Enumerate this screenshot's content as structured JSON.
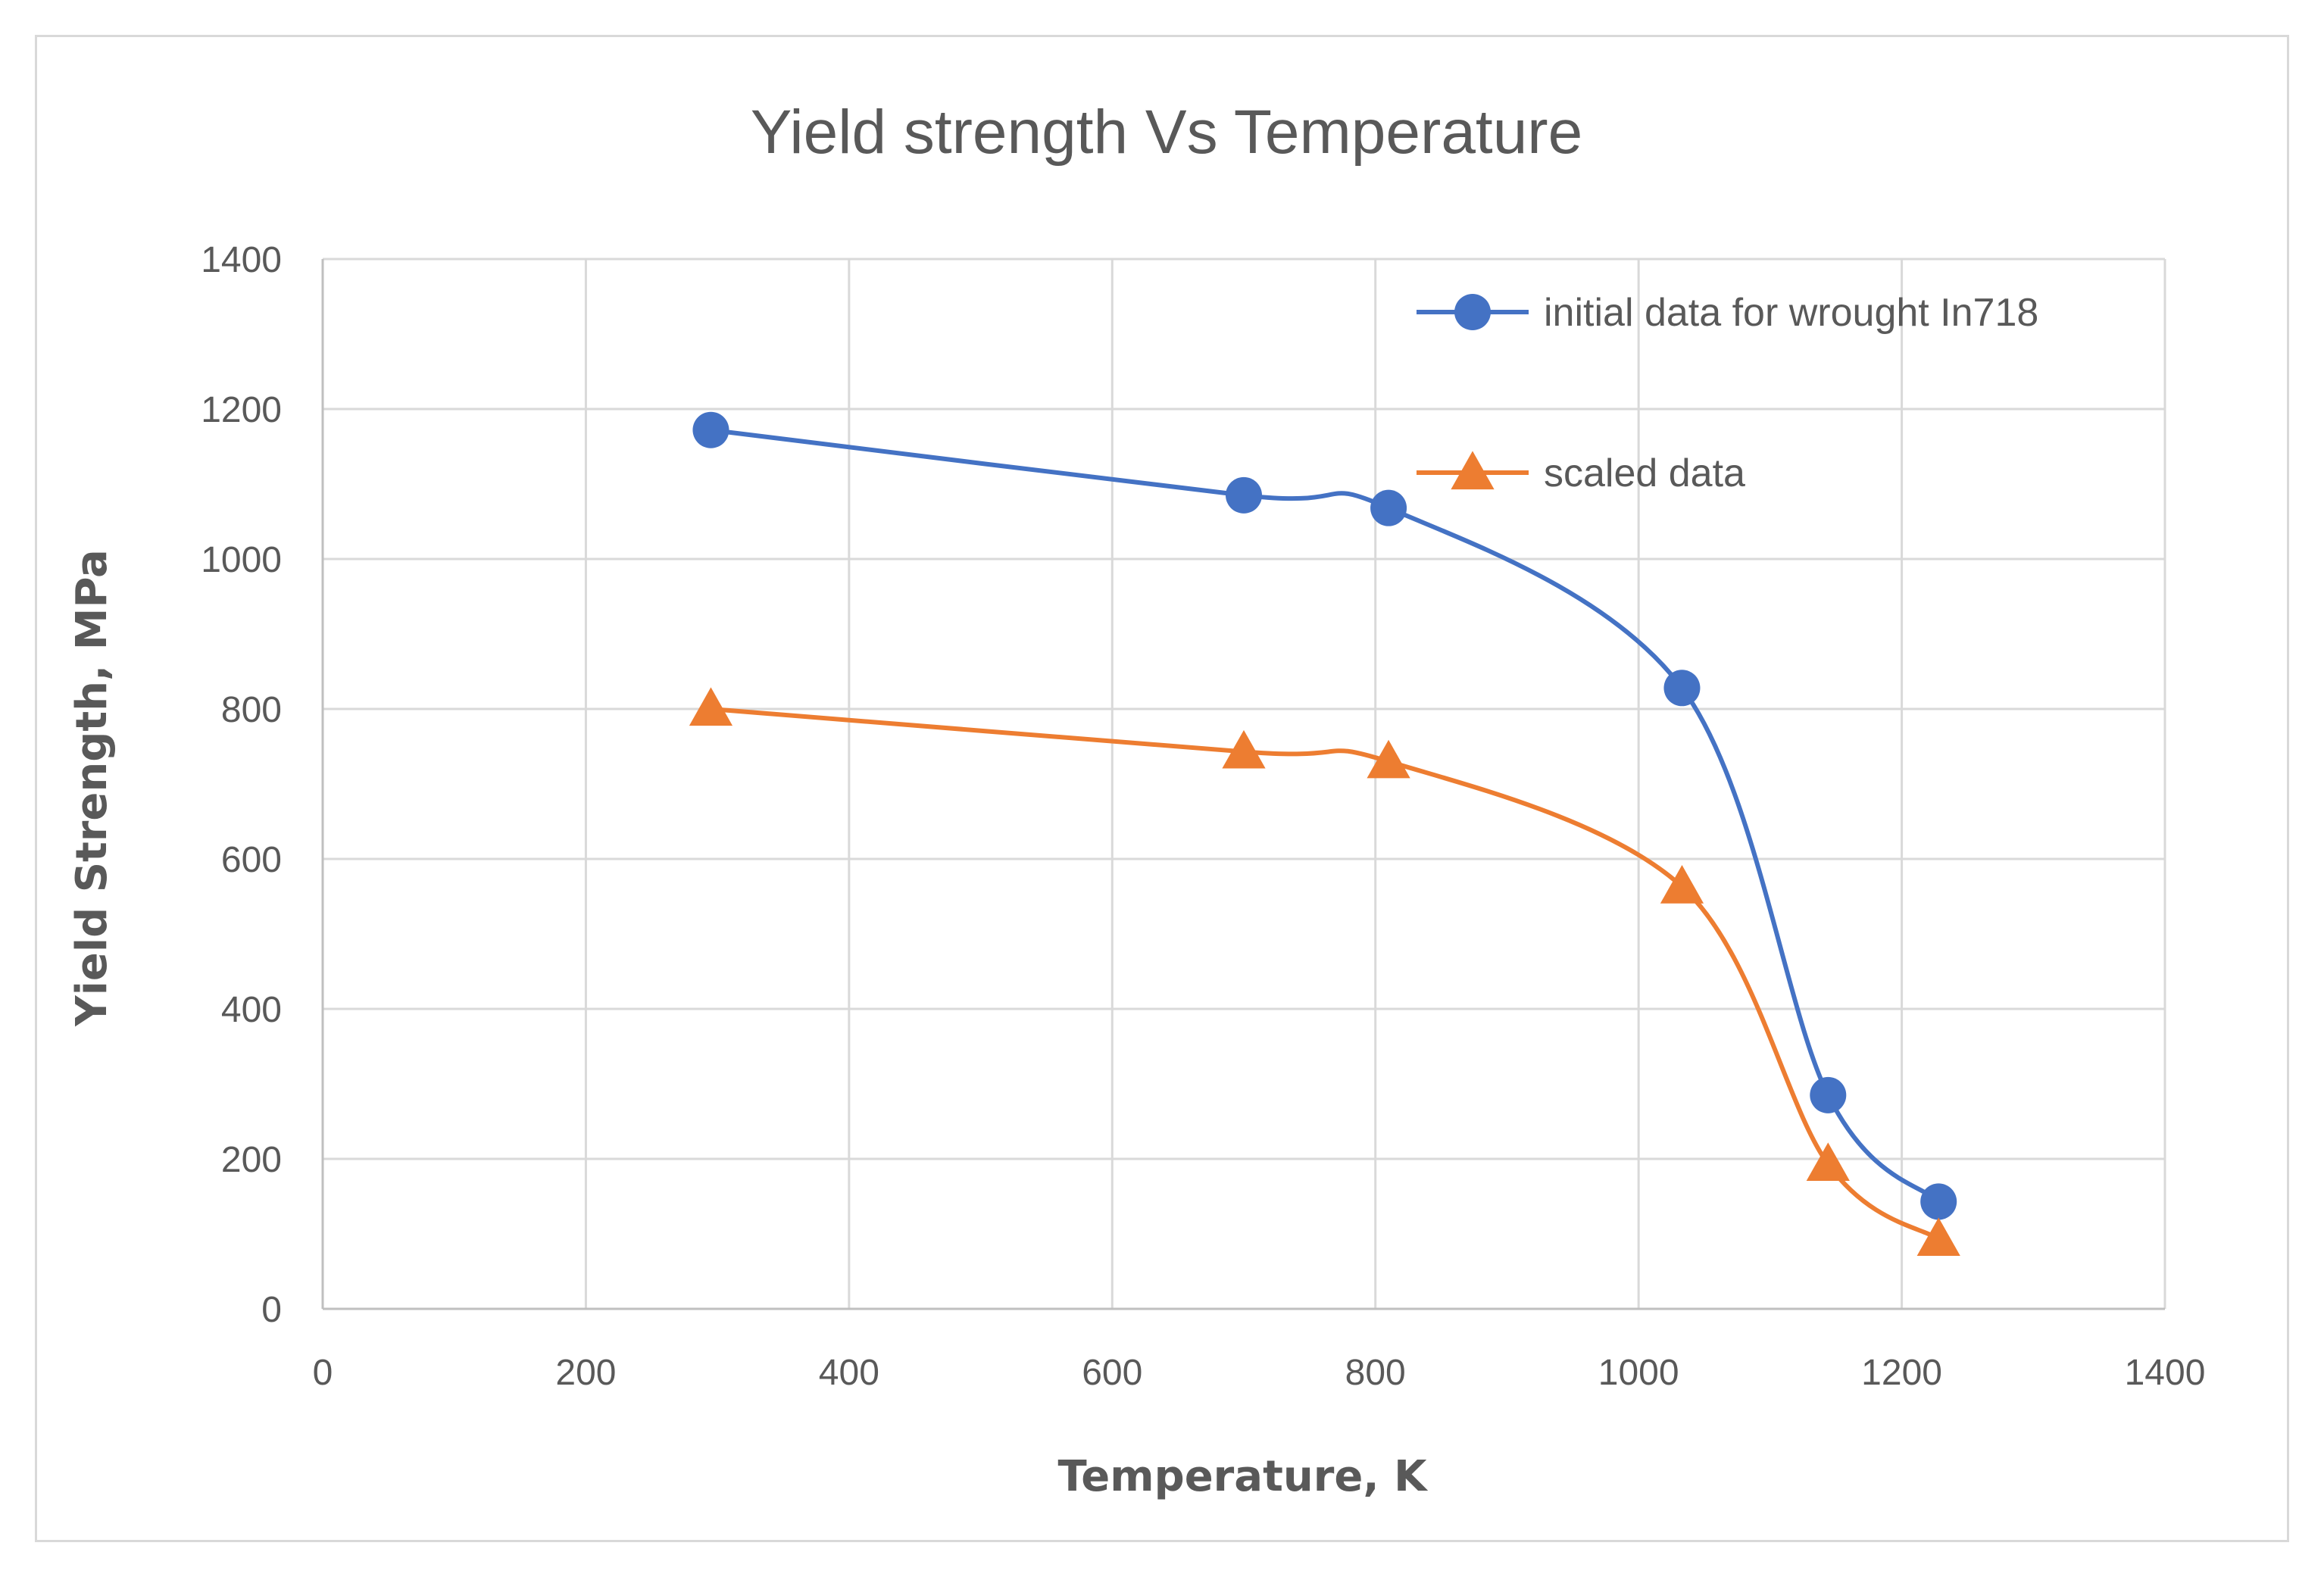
{
  "chart_data": {
    "type": "scatter",
    "title": "Yield strength Vs Temperature",
    "xlabel": "Temperature, K",
    "ylabel": "Yield Strength, MPa",
    "xlim": [
      0,
      1400
    ],
    "ylim": [
      0,
      1400
    ],
    "xticks": [
      0,
      200,
      400,
      600,
      800,
      1000,
      1200,
      1400
    ],
    "yticks": [
      0,
      200,
      400,
      600,
      800,
      1000,
      1200,
      1400
    ],
    "grid": true,
    "legend_position": "top-right",
    "series": [
      {
        "name": "initial data for wrought In718",
        "color": "#4472c4",
        "marker": "circle",
        "x": [
          295,
          700,
          810,
          1033,
          1144,
          1228
        ],
        "y": [
          1172,
          1085,
          1068,
          828,
          285,
          143
        ]
      },
      {
        "name": "scaled data",
        "color": "#ed7d31",
        "marker": "triangle",
        "x": [
          295,
          700,
          810,
          1033,
          1144,
          1228
        ],
        "y": [
          800,
          743,
          730,
          563,
          193,
          93
        ]
      }
    ]
  }
}
